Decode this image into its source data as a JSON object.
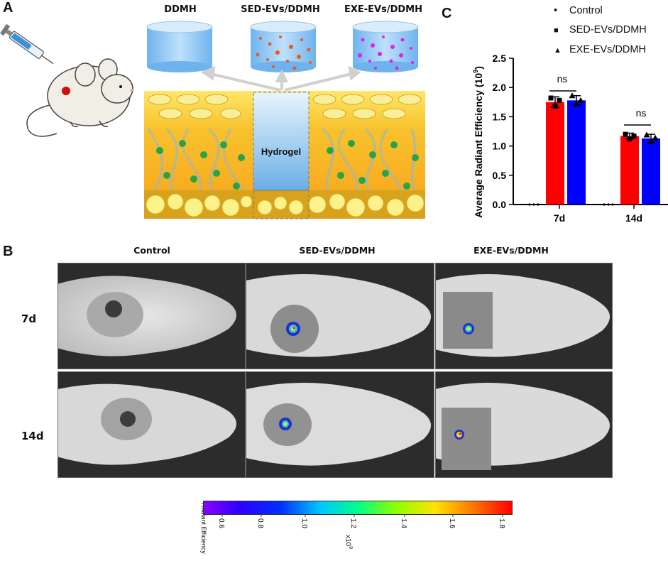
{
  "panel_a": {
    "letter": "A",
    "vial_labels": [
      "DDMH",
      "SED-EVs/DDMH",
      "EXE-EVs/DDMH"
    ],
    "hydrogel_label": "Hydrogel"
  },
  "panel_b": {
    "letter": "B",
    "columns": [
      "Control",
      "SED-EVs/DDMH",
      "EXE-EVs/DDMH"
    ],
    "rows": [
      "7d",
      "14d"
    ],
    "colorbar": {
      "title": "Radiant Efficiency",
      "ticks": [
        "0.6",
        "0.8",
        "1.0",
        "1.2",
        "1.4",
        "1.6",
        "1.8"
      ],
      "multiplier": "x10",
      "exponent": "9"
    }
  },
  "panel_c": {
    "letter": "C",
    "legend": [
      {
        "marker": "•",
        "label": "Control"
      },
      {
        "marker": "■",
        "label": "SED-EVs/DDMH"
      },
      {
        "marker": "▲",
        "label": "EXE-EVs/DDMH"
      }
    ],
    "significance": [
      "ns",
      "ns"
    ]
  },
  "chart_data": {
    "type": "bar",
    "ylabel": "Average Radiant Efficiency (10",
    "ylabel_exp": "9",
    "ylabel_close": ")",
    "categories": [
      "7d",
      "14d"
    ],
    "ylim": [
      0,
      2.5
    ],
    "yticks": [
      "0.0",
      "0.5",
      "1.0",
      "1.5",
      "2.0",
      "2.5"
    ],
    "series": [
      {
        "name": "Control",
        "values": [
          0.0,
          0.0
        ],
        "errors": [
          0,
          0
        ],
        "color": "#000000",
        "points": [
          [
            0,
            0,
            0
          ],
          [
            0,
            0,
            0
          ]
        ]
      },
      {
        "name": "SED-EVs/DDMH",
        "values": [
          1.75,
          1.17
        ],
        "errors": [
          0.09,
          0.05
        ],
        "color": "#ff0000",
        "points": [
          [
            1.82,
            1.68,
            1.78
          ],
          [
            1.2,
            1.12,
            1.17
          ]
        ]
      },
      {
        "name": "EXE-EVs/DDMH",
        "values": [
          1.78,
          1.13
        ],
        "errors": [
          0.08,
          0.07
        ],
        "color": "#0000ff",
        "points": [
          [
            1.86,
            1.72,
            1.78
          ],
          [
            1.19,
            1.08,
            1.14
          ]
        ]
      }
    ]
  }
}
